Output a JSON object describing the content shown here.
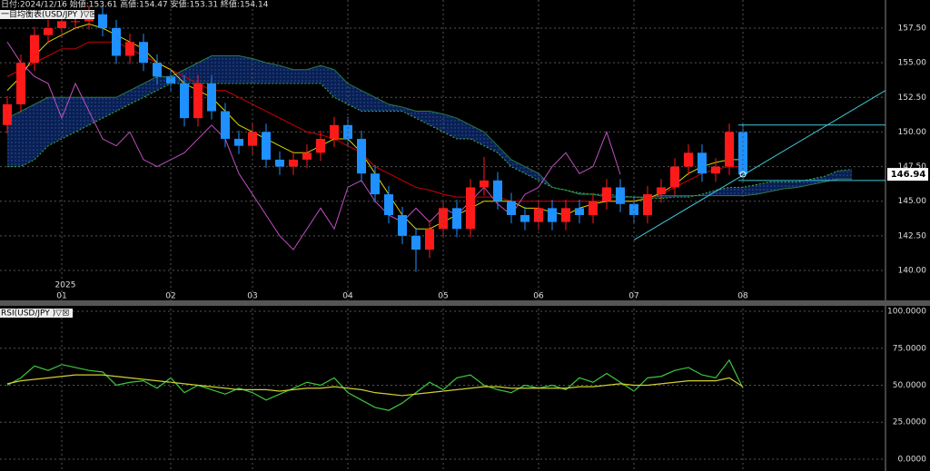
{
  "header": {
    "info": "日付:2024/12/16 始値:153.61 高値:154.47 安値:153.31 終値:154.14",
    "indicator": "一目均衡表(USD/JPY )▽☒"
  },
  "chart_data": [
    {
      "type": "candlestick",
      "categories": [
        null,
        null,
        null,
        null,
        "01",
        null,
        null,
        null,
        null,
        null,
        null,
        null,
        "02",
        null,
        null,
        null,
        null,
        null,
        "03",
        null,
        null,
        null,
        null,
        null,
        null,
        "04",
        null,
        null,
        null,
        null,
        null,
        null,
        "05",
        null,
        null,
        null,
        null,
        null,
        null,
        "06",
        null,
        null,
        null,
        null,
        null,
        null,
        "07",
        null,
        null,
        null,
        null,
        null,
        null,
        null,
        "08",
        null,
        null,
        null,
        null,
        null,
        null,
        null,
        null
      ],
      "year_label": "2025",
      "open": [
        150.5,
        152,
        155,
        157,
        157.5,
        158,
        158,
        158.5,
        157.5,
        155.5,
        156.5,
        155,
        154,
        153.5,
        151,
        153.5,
        151.5,
        149.5,
        149,
        150,
        148,
        147.5,
        148,
        148.5,
        149.5,
        150.5,
        149.5,
        147,
        145.5,
        144,
        142.5,
        141.5,
        143,
        144.5,
        143,
        146,
        146.5,
        145,
        144,
        143.5,
        144.5,
        143.5,
        144.5,
        144,
        145,
        146,
        144.8,
        144,
        145.5,
        146,
        147.5,
        148.5,
        147,
        147.5,
        150,
        null,
        null,
        null,
        null,
        null,
        null,
        null,
        null
      ],
      "high": [
        152.6,
        155.6,
        157.6,
        158.1,
        158.6,
        158.6,
        159.1,
        159.1,
        158.1,
        157.1,
        157.1,
        155.6,
        154.6,
        154.1,
        154.1,
        154.1,
        152.1,
        150.1,
        150.6,
        150.6,
        148.6,
        148.6,
        149.1,
        150.1,
        151.1,
        151.1,
        150.1,
        147.6,
        146.1,
        144.6,
        143.1,
        143.6,
        145.1,
        145.1,
        146.6,
        148.2,
        147.1,
        145.6,
        144.6,
        145.1,
        145.1,
        145.1,
        145.1,
        145.6,
        146.6,
        146.6,
        145.4,
        146.1,
        146.6,
        148.1,
        149.1,
        149.1,
        148.1,
        150.6,
        150.6,
        null,
        null,
        null,
        null,
        null,
        null,
        null,
        null
      ],
      "low": [
        149.9,
        151.4,
        154.4,
        156.4,
        156.9,
        157.4,
        157.4,
        156.9,
        154.9,
        154.9,
        154.4,
        153.4,
        152.9,
        150.4,
        150.4,
        150.9,
        148.9,
        148.4,
        148.4,
        147.4,
        146.9,
        146.9,
        147.4,
        147.9,
        148.9,
        148.9,
        146.4,
        144.9,
        143.4,
        141.9,
        139.9,
        140.9,
        142.4,
        142.4,
        142.4,
        145.4,
        144.4,
        143.4,
        142.9,
        142.9,
        142.9,
        142.9,
        143.4,
        143.4,
        144.4,
        144.2,
        143.4,
        143.4,
        144.9,
        145.4,
        146.9,
        146.4,
        146.4,
        146.9,
        146.5,
        null,
        null,
        null,
        null,
        null,
        null,
        null,
        null
      ],
      "close": [
        152,
        155,
        157,
        157.5,
        158,
        158,
        158.5,
        157.5,
        155.5,
        156.5,
        155,
        154,
        153.5,
        151,
        153.5,
        151.5,
        149.5,
        149,
        150,
        148,
        147.5,
        148,
        148.5,
        149.5,
        150.5,
        149.5,
        147,
        145.5,
        144,
        142.5,
        141.5,
        143,
        144.5,
        143,
        146,
        146.5,
        145,
        144,
        143.5,
        144.5,
        143.5,
        144.5,
        144,
        145,
        146,
        144.8,
        144,
        145.5,
        146,
        147.5,
        148.5,
        147,
        147.5,
        150,
        146.94,
        null,
        null,
        null,
        null,
        null,
        null,
        null,
        null
      ],
      "up_color": "#ff1a1a",
      "down_color": "#1e90ff",
      "tenkan": {
        "color": "#d8d800",
        "values": [
          153,
          154,
          155.5,
          156.5,
          157,
          157.5,
          157.8,
          157.5,
          157,
          156.5,
          156,
          155,
          154.5,
          153.5,
          153,
          152.5,
          151.5,
          150.5,
          150,
          149.5,
          149,
          148.5,
          148.5,
          149,
          149.5,
          149.5,
          148.5,
          147,
          145.5,
          144,
          143,
          143,
          143.5,
          144,
          144.5,
          145,
          145,
          145,
          144.5,
          144.5,
          144.2,
          144,
          144.5,
          144.8,
          145,
          145,
          145,
          145.2,
          145.6,
          146.2,
          147,
          147.5,
          147.8,
          148,
          148,
          null,
          null,
          null,
          null,
          null,
          null,
          null,
          null
        ]
      },
      "kijun": {
        "color": "#d00000",
        "values": [
          154,
          154.5,
          155,
          155.5,
          156,
          156,
          156.5,
          156.5,
          156.5,
          156,
          155.5,
          155,
          154.5,
          154,
          153.5,
          153,
          153,
          152.5,
          152,
          151.5,
          151,
          150.5,
          150,
          149.8,
          149.5,
          149,
          148.5,
          147.5,
          147,
          146.5,
          146,
          145.8,
          145.5,
          145.3,
          145.3,
          145.3,
          145.3,
          145,
          145,
          145,
          145,
          145,
          145,
          145,
          145,
          145,
          145,
          145.2,
          145.5,
          146,
          146.5,
          147,
          147.3,
          147.5,
          147.5,
          null,
          null,
          null,
          null,
          null,
          null,
          null,
          null
        ]
      },
      "span_a": {
        "color": "#3cb83c",
        "values": [
          147.5,
          147.5,
          148,
          149,
          149.5,
          150,
          150.5,
          151,
          151.5,
          152,
          152.5,
          153,
          153.5,
          153.5,
          153.5,
          153.5,
          153.5,
          153.5,
          153.5,
          153.5,
          153.5,
          153.5,
          153.5,
          153.5,
          152.5,
          152,
          151.5,
          151.5,
          151.5,
          151.5,
          151,
          150.5,
          150,
          149.5,
          149.5,
          149,
          148.5,
          147.5,
          147,
          146.5,
          146,
          145.8,
          145.6,
          145.5,
          145.5,
          145.4,
          145.3,
          145.2,
          145.2,
          145.3,
          145.3,
          145.5,
          145.8,
          146,
          146,
          146.2,
          146.4,
          146.4,
          146.4,
          146.6,
          146.8,
          147.2,
          147.3
        ]
      },
      "span_b": {
        "color": "#2a7a4a",
        "values": [
          151,
          151.5,
          152,
          152.5,
          152.5,
          152.5,
          152.5,
          152.5,
          152.5,
          153,
          153.5,
          154,
          154,
          154.5,
          155,
          155.5,
          155.5,
          155.5,
          155.3,
          155,
          154.8,
          154.5,
          154.5,
          154.8,
          154.5,
          153.5,
          153,
          152.5,
          152,
          151.8,
          151.5,
          151.5,
          151.3,
          151,
          150.5,
          150,
          149,
          148,
          147.5,
          147,
          146,
          145.8,
          145.5,
          145.5,
          145.3,
          145.3,
          145.3,
          145.3,
          145.4,
          145.4,
          145.4,
          145.4,
          145.4,
          145.4,
          145.4,
          145.5,
          145.7,
          145.9,
          146,
          146.2,
          146.4,
          146.6,
          146.6
        ]
      },
      "chikou": {
        "color": "#c050c0",
        "values": [
          156.5,
          155,
          154,
          153.5,
          151,
          153.5,
          151.5,
          149.5,
          149,
          150,
          148,
          147.5,
          148,
          148.5,
          149.5,
          150.5,
          149.5,
          147,
          145.5,
          144,
          142.5,
          141.5,
          143,
          144.5,
          143,
          146,
          146.5,
          145,
          144,
          143.5,
          144.5,
          143.5,
          144.5,
          144,
          145,
          146,
          144.8,
          144,
          145.5,
          146,
          147.5,
          148.5,
          147,
          147.5,
          150,
          146.94,
          null,
          null,
          null,
          null,
          null,
          null,
          null,
          null,
          null,
          null,
          null,
          null,
          null,
          null,
          null,
          null,
          null
        ]
      },
      "cloud_color": "#0a1f52",
      "hlines": [
        150.5,
        146.5
      ],
      "trendline": [
        142.2,
        153
      ],
      "drawing_color": "#40c8d8",
      "ylim": [
        138.1,
        159.53
      ],
      "yticks": [
        {
          "value": 140,
          "label": "140.00"
        },
        {
          "value": 142.5,
          "label": "142.50"
        },
        {
          "value": 145,
          "label": "145.00"
        },
        {
          "value": 147.5,
          "label": "147.50"
        },
        {
          "value": 150,
          "label": "150.00"
        },
        {
          "value": 152.5,
          "label": "152.50"
        },
        {
          "value": 155,
          "label": "155.00"
        },
        {
          "value": 157.5,
          "label": "157.50"
        }
      ],
      "grid": true
    },
    {
      "type": "line",
      "title": "RSI(USD/JPY )▽☒",
      "series": [
        {
          "color": "#3cc83c",
          "values": [
            50,
            55,
            63,
            60,
            64,
            62,
            60,
            59,
            50,
            52,
            53,
            48,
            55,
            45,
            50,
            47,
            44,
            48,
            45,
            40,
            44,
            48,
            52,
            50,
            55,
            45,
            40,
            35,
            33,
            38,
            45,
            52,
            47,
            55,
            57,
            50,
            47,
            45,
            50,
            48,
            50,
            47,
            55,
            52,
            58,
            52,
            46,
            55,
            56,
            60,
            62,
            57,
            55,
            67,
            48
          ]
        },
        {
          "color": "#d0d030",
          "values": [
            51,
            53,
            54,
            55,
            56,
            57,
            57,
            57,
            56,
            55,
            54,
            53,
            52,
            51,
            50,
            49,
            48,
            47,
            47,
            47,
            46,
            47,
            48,
            48,
            49,
            48,
            47,
            45,
            44,
            43,
            44,
            45,
            46,
            47,
            48,
            49,
            49,
            48,
            48,
            48,
            48,
            48,
            49,
            49,
            50,
            51,
            50,
            50,
            51,
            52,
            53,
            53,
            53,
            55,
            49
          ]
        }
      ],
      "ylim": [
        -8,
        103.1
      ],
      "yticks": [
        {
          "value": 0,
          "label": "0.0000"
        },
        {
          "value": 25,
          "label": "25.0000"
        },
        {
          "value": 50,
          "label": "50.0000"
        },
        {
          "value": 75,
          "label": "75.0000"
        },
        {
          "value": 100,
          "label": "100.0000"
        }
      ],
      "grid": true
    }
  ]
}
